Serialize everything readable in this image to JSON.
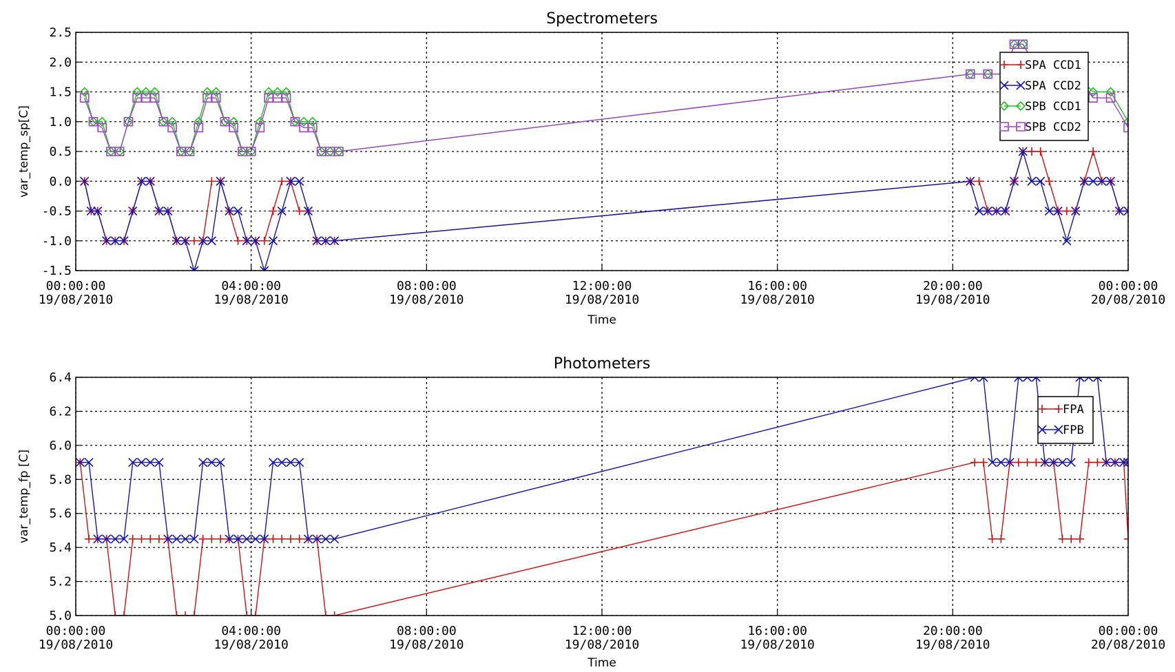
{
  "colors": {
    "red": "#d01010",
    "blue": "#1414b4",
    "green": "#22c022",
    "purple": "#a040c8",
    "grid": "#000000"
  },
  "chart_data": [
    {
      "type": "line",
      "title": "Spectrometers",
      "xlabel": "Time",
      "ylabel": "var_temp_sp[C]",
      "xlim": [
        "19/08/2010 00:00:00",
        "20/08/2010 00:00:00"
      ],
      "xlim_hours": [
        0,
        24
      ],
      "ylim": [
        -1.5,
        2.5
      ],
      "xticks": [
        {
          "time": "00:00:00",
          "date": "19/08/2010"
        },
        {
          "time": "04:00:00",
          "date": "19/08/2010"
        },
        {
          "time": "08:00:00",
          "date": "19/08/2010"
        },
        {
          "time": "12:00:00",
          "date": "19/08/2010"
        },
        {
          "time": "16:00:00",
          "date": "19/08/2010"
        },
        {
          "time": "20:00:00",
          "date": "19/08/2010"
        },
        {
          "time": "00:00:00",
          "date": "20/08/2010"
        }
      ],
      "yticks": [
        "2.5",
        "2.0",
        "1.5",
        "1.0",
        "0.5",
        "0.0",
        "-0.5",
        "-1.0",
        "-1.5"
      ],
      "ytick_values": [
        2.5,
        2.0,
        1.5,
        1.0,
        0.5,
        0.0,
        -0.5,
        -1.0,
        -1.5
      ],
      "grid": true,
      "legend_position": "top-right",
      "series": [
        {
          "name": "SPA CCD1",
          "color": "#d01010",
          "marker": "plus",
          "x": [
            0.2,
            0.35,
            0.5,
            0.7,
            0.9,
            1.1,
            1.3,
            1.5,
            1.7,
            1.9,
            2.1,
            2.3,
            2.5,
            2.7,
            2.9,
            3.1,
            3.3,
            3.5,
            3.7,
            3.9,
            4.1,
            4.3,
            4.5,
            4.7,
            4.9,
            5.1,
            5.3,
            5.5,
            5.7,
            5.9,
            20.4,
            20.6,
            20.8,
            21.0,
            21.2,
            21.4,
            21.6,
            21.8,
            22.0,
            22.2,
            22.4,
            22.6,
            22.8,
            23.0,
            23.2,
            23.4,
            23.6,
            23.8,
            24.0
          ],
          "y": [
            0.0,
            -0.5,
            -0.5,
            -1.0,
            -1.0,
            -1.0,
            -0.5,
            0.0,
            0.0,
            -0.5,
            -0.5,
            -1.0,
            -1.0,
            -1.0,
            -1.0,
            0.0,
            0.0,
            -0.5,
            -1.0,
            -1.0,
            -1.0,
            -1.0,
            -0.5,
            0.0,
            0.0,
            -0.5,
            -0.5,
            -1.0,
            -1.0,
            -1.0,
            0.0,
            0.0,
            -0.5,
            -0.5,
            -0.5,
            0.0,
            0.5,
            0.5,
            0.5,
            0.0,
            -0.5,
            -0.5,
            -0.5,
            0.0,
            0.5,
            0.0,
            0.0,
            -0.5,
            -0.5
          ]
        },
        {
          "name": "SPA CCD2",
          "color": "#1414b4",
          "marker": "x",
          "x": [
            0.2,
            0.35,
            0.5,
            0.7,
            0.9,
            1.1,
            1.3,
            1.5,
            1.7,
            1.9,
            2.1,
            2.3,
            2.5,
            2.7,
            2.9,
            3.1,
            3.3,
            3.5,
            3.7,
            3.9,
            4.1,
            4.3,
            4.5,
            4.7,
            4.9,
            5.1,
            5.3,
            5.5,
            5.7,
            5.9,
            20.4,
            20.6,
            20.8,
            21.0,
            21.2,
            21.4,
            21.6,
            21.8,
            22.0,
            22.2,
            22.4,
            22.6,
            22.8,
            23.0,
            23.2,
            23.4,
            23.6,
            23.8,
            24.0
          ],
          "y": [
            0.0,
            -0.5,
            -0.5,
            -1.0,
            -1.0,
            -1.0,
            -0.5,
            0.0,
            0.0,
            -0.5,
            -0.5,
            -1.0,
            -1.0,
            -1.5,
            -1.0,
            -1.0,
            0.0,
            -0.5,
            -0.5,
            -1.0,
            -1.0,
            -1.5,
            -1.0,
            -0.5,
            0.0,
            0.0,
            -0.5,
            -1.0,
            -1.0,
            -1.0,
            0.0,
            -0.5,
            -0.5,
            -0.5,
            -0.5,
            0.0,
            0.5,
            0.0,
            0.0,
            -0.5,
            -0.5,
            -1.0,
            -0.5,
            0.0,
            0.0,
            0.0,
            0.0,
            -0.5,
            -0.5
          ]
        },
        {
          "name": "SPB CCD1",
          "color": "#22c022",
          "marker": "diamond",
          "x": [
            0.2,
            0.4,
            0.6,
            0.8,
            1.0,
            1.2,
            1.4,
            1.6,
            1.8,
            2.0,
            2.2,
            2.4,
            2.6,
            2.8,
            3.0,
            3.2,
            3.4,
            3.6,
            3.8,
            4.0,
            4.2,
            4.4,
            4.6,
            4.8,
            5.0,
            5.2,
            5.4,
            5.6,
            5.8,
            6.0,
            20.4,
            20.8,
            21.2,
            21.4,
            21.6,
            22.0,
            22.4,
            22.8,
            23.2,
            23.6,
            24.0
          ],
          "y": [
            1.5,
            1.0,
            1.0,
            0.5,
            0.5,
            1.0,
            1.5,
            1.5,
            1.5,
            1.0,
            1.0,
            0.5,
            0.5,
            1.0,
            1.5,
            1.5,
            1.0,
            1.0,
            0.5,
            0.5,
            1.0,
            1.5,
            1.5,
            1.5,
            1.0,
            1.0,
            1.0,
            0.5,
            0.5,
            0.5,
            1.8,
            1.8,
            1.8,
            2.3,
            2.3,
            1.8,
            1.8,
            1.8,
            1.5,
            1.5,
            1.0
          ]
        },
        {
          "name": "SPB CCD2",
          "color": "#a040c8",
          "marker": "square",
          "x": [
            0.2,
            0.4,
            0.6,
            0.8,
            1.0,
            1.2,
            1.4,
            1.6,
            1.8,
            2.0,
            2.2,
            2.4,
            2.6,
            2.8,
            3.0,
            3.2,
            3.4,
            3.6,
            3.8,
            4.0,
            4.2,
            4.4,
            4.6,
            4.8,
            5.0,
            5.2,
            5.4,
            5.6,
            5.8,
            6.0,
            20.4,
            20.8,
            21.2,
            21.4,
            21.6,
            22.0,
            22.4,
            22.8,
            23.2,
            23.6,
            24.0
          ],
          "y": [
            1.4,
            1.0,
            0.9,
            0.5,
            0.5,
            1.0,
            1.4,
            1.4,
            1.4,
            1.0,
            0.9,
            0.5,
            0.5,
            0.9,
            1.4,
            1.4,
            1.0,
            0.9,
            0.5,
            0.5,
            0.9,
            1.4,
            1.4,
            1.4,
            1.0,
            0.9,
            0.9,
            0.5,
            0.5,
            0.5,
            1.8,
            1.8,
            1.8,
            2.3,
            2.3,
            1.8,
            1.8,
            1.8,
            1.4,
            1.4,
            0.9
          ]
        }
      ]
    },
    {
      "type": "line",
      "title": "Photometers",
      "xlabel": "Time",
      "ylabel": "var_temp_fp [C]",
      "xlim": [
        "19/08/2010 00:00:00",
        "20/08/2010 00:00:00"
      ],
      "xlim_hours": [
        0,
        24
      ],
      "ylim": [
        5.0,
        6.4
      ],
      "xticks": [
        {
          "time": "00:00:00",
          "date": "19/08/2010"
        },
        {
          "time": "04:00:00",
          "date": "19/08/2010"
        },
        {
          "time": "08:00:00",
          "date": "19/08/2010"
        },
        {
          "time": "12:00:00",
          "date": "19/08/2010"
        },
        {
          "time": "16:00:00",
          "date": "19/08/2010"
        },
        {
          "time": "20:00:00",
          "date": "19/08/2010"
        },
        {
          "time": "00:00:00",
          "date": "20/08/2010"
        }
      ],
      "yticks": [
        "6.4",
        "6.2",
        "6.0",
        "5.8",
        "5.6",
        "5.4",
        "5.2",
        "5.0"
      ],
      "ytick_values": [
        6.4,
        6.2,
        6.0,
        5.8,
        5.6,
        5.4,
        5.2,
        5.0
      ],
      "grid": true,
      "legend_position": "top-right",
      "series": [
        {
          "name": "FPA",
          "color": "#d01010",
          "marker": "plus",
          "x": [
            0.1,
            0.3,
            0.5,
            0.7,
            0.9,
            1.1,
            1.3,
            1.5,
            1.7,
            1.9,
            2.1,
            2.3,
            2.5,
            2.7,
            2.9,
            3.1,
            3.3,
            3.5,
            3.7,
            3.9,
            4.1,
            4.3,
            4.5,
            4.7,
            4.9,
            5.1,
            5.3,
            5.5,
            5.7,
            5.9,
            20.5,
            20.7,
            20.9,
            21.1,
            21.3,
            21.5,
            21.7,
            21.9,
            22.1,
            22.3,
            22.5,
            22.7,
            22.9,
            23.1,
            23.3,
            23.5,
            23.7,
            23.9,
            24.0
          ],
          "y": [
            5.9,
            5.45,
            5.45,
            5.45,
            5.0,
            5.0,
            5.45,
            5.45,
            5.45,
            5.45,
            5.45,
            5.0,
            5.0,
            5.0,
            5.45,
            5.45,
            5.45,
            5.45,
            5.45,
            5.0,
            5.0,
            5.45,
            5.45,
            5.45,
            5.45,
            5.45,
            5.45,
            5.45,
            5.0,
            5.0,
            5.9,
            5.9,
            5.45,
            5.45,
            5.9,
            5.9,
            5.9,
            5.9,
            5.9,
            5.9,
            5.45,
            5.45,
            5.45,
            5.9,
            5.9,
            5.9,
            5.9,
            5.9,
            5.45
          ]
        },
        {
          "name": "FPB",
          "color": "#1414b4",
          "marker": "x",
          "x": [
            0.1,
            0.3,
            0.5,
            0.7,
            0.9,
            1.1,
            1.3,
            1.5,
            1.7,
            1.9,
            2.1,
            2.3,
            2.5,
            2.7,
            2.9,
            3.1,
            3.3,
            3.5,
            3.7,
            3.9,
            4.1,
            4.3,
            4.5,
            4.7,
            4.9,
            5.1,
            5.3,
            5.5,
            5.7,
            5.9,
            20.5,
            20.7,
            20.9,
            21.1,
            21.3,
            21.5,
            21.7,
            21.9,
            22.1,
            22.3,
            22.5,
            22.7,
            22.9,
            23.1,
            23.3,
            23.5,
            23.7,
            23.9,
            24.0
          ],
          "y": [
            5.9,
            5.9,
            5.45,
            5.45,
            5.45,
            5.45,
            5.9,
            5.9,
            5.9,
            5.9,
            5.45,
            5.45,
            5.45,
            5.45,
            5.9,
            5.9,
            5.9,
            5.45,
            5.45,
            5.45,
            5.45,
            5.45,
            5.9,
            5.9,
            5.9,
            5.9,
            5.45,
            5.45,
            5.45,
            5.45,
            6.4,
            6.4,
            5.9,
            5.9,
            5.9,
            6.4,
            6.4,
            6.4,
            5.9,
            5.9,
            5.9,
            5.9,
            6.4,
            6.4,
            6.4,
            5.9,
            5.9,
            5.9,
            5.9
          ]
        }
      ]
    }
  ]
}
